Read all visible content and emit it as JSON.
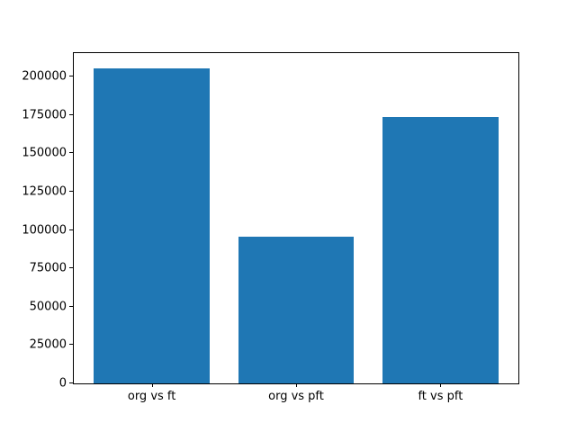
{
  "chart_data": {
    "type": "bar",
    "categories": [
      "org vs ft",
      "org vs pft",
      "ft vs pft"
    ],
    "values": [
      205000,
      95500,
      173500
    ],
    "yticks": [
      0,
      25000,
      50000,
      75000,
      100000,
      125000,
      150000,
      175000,
      200000
    ],
    "ylim": [
      0,
      215250
    ],
    "bar_color": "#1f77b4",
    "grid": false,
    "legend": false,
    "bar_width_fraction": 0.8,
    "x_margin_fraction": 0.05
  },
  "colors": {
    "background": "#ffffff",
    "axis": "#000000",
    "tick_text": "#000000"
  }
}
